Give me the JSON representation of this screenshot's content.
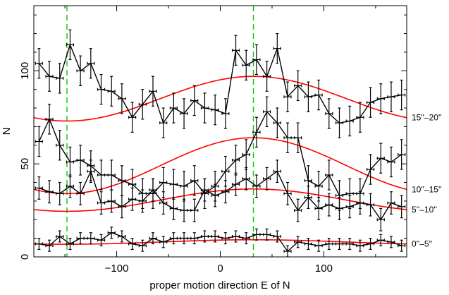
{
  "chart_data": {
    "type": "line",
    "title": "",
    "xlabel": "proper motion direction E of N",
    "ylabel": "N",
    "xlim": [
      -180,
      180
    ],
    "ylim": [
      0,
      135
    ],
    "xticks": [
      -100,
      0,
      100
    ],
    "yticks": [
      0,
      50,
      100
    ],
    "grid": false,
    "reference_lines_x": [
      -148,
      32
    ],
    "colors": {
      "data": "#000000",
      "fit": "#ff0000",
      "reference": "#00cc00"
    },
    "series": [
      {
        "name": "15''–20''",
        "x": [
          -175,
          -165,
          -155,
          -145,
          -135,
          -125,
          -115,
          -105,
          -95,
          -85,
          -75,
          -65,
          -55,
          -45,
          -35,
          -25,
          -15,
          -5,
          5,
          15,
          25,
          35,
          45,
          55,
          65,
          75,
          85,
          95,
          105,
          115,
          125,
          135,
          145,
          155,
          165,
          175
        ],
        "y": [
          104,
          97,
          96,
          114,
          100,
          104,
          90,
          89,
          85,
          75,
          82,
          89,
          72,
          80,
          77,
          84,
          80,
          79,
          77,
          111,
          103,
          106,
          97,
          112,
          86,
          92,
          86,
          87,
          77,
          72,
          73,
          75,
          83,
          85,
          86,
          87
        ],
        "err": 8,
        "fit": {
          "mean": 85,
          "amplitude": 12,
          "phase": 32
        }
      },
      {
        "name": "10''–15''",
        "x": [
          -175,
          -165,
          -155,
          -145,
          -135,
          -125,
          -115,
          -105,
          -95,
          -85,
          -75,
          -65,
          -55,
          -45,
          -35,
          -25,
          -15,
          -5,
          5,
          15,
          25,
          35,
          45,
          55,
          65,
          75,
          85,
          95,
          105,
          115,
          125,
          135,
          145,
          155,
          165,
          175
        ],
        "y": [
          62,
          74,
          60,
          51,
          52,
          49,
          44,
          44,
          41,
          39,
          34,
          34,
          40,
          39,
          38,
          41,
          34,
          38,
          46,
          52,
          55,
          67,
          78,
          72,
          64,
          64,
          41,
          38,
          44,
          33,
          34,
          34,
          47,
          53,
          51,
          55
        ],
        "err": 8,
        "fit": {
          "mean": 49,
          "amplitude": 15,
          "phase": 32
        }
      },
      {
        "name": "5''–10''",
        "x": [
          -175,
          -165,
          -155,
          -145,
          -135,
          -125,
          -115,
          -105,
          -95,
          -85,
          -75,
          -65,
          -55,
          -45,
          -35,
          -25,
          -15,
          -5,
          5,
          15,
          25,
          35,
          45,
          55,
          65,
          75,
          85,
          95,
          105,
          115,
          125,
          135,
          145,
          155,
          165,
          175
        ],
        "y": [
          37,
          35,
          34,
          38,
          34,
          46,
          29,
          30,
          27,
          31,
          30,
          36,
          29,
          26,
          25,
          25,
          36,
          33,
          35,
          39,
          42,
          38,
          42,
          46,
          34,
          25,
          32,
          26,
          28,
          26,
          27,
          29,
          28,
          20,
          29,
          27
        ],
        "err": 6,
        "fit": {
          "mean": 30.5,
          "amplitude": 6,
          "phase": 32
        }
      },
      {
        "name": "0''–5''",
        "x": [
          -175,
          -165,
          -155,
          -145,
          -135,
          -125,
          -115,
          -105,
          -95,
          -85,
          -75,
          -65,
          -55,
          -45,
          -35,
          -25,
          -15,
          -5,
          5,
          15,
          25,
          35,
          45,
          55,
          65,
          75,
          85,
          95,
          105,
          115,
          125,
          135,
          145,
          155,
          165,
          175
        ],
        "y": [
          7,
          6,
          11,
          7,
          10,
          10,
          9,
          13,
          11,
          7,
          6,
          10,
          8,
          10,
          10,
          10,
          11,
          11,
          10,
          11,
          10,
          12,
          12,
          11,
          3,
          8,
          7,
          6,
          7,
          7,
          7,
          6,
          7,
          9,
          8,
          6
        ],
        "err": 3,
        "fit": {
          "mean": 8,
          "amplitude": 1.2,
          "phase": 32
        }
      }
    ]
  }
}
